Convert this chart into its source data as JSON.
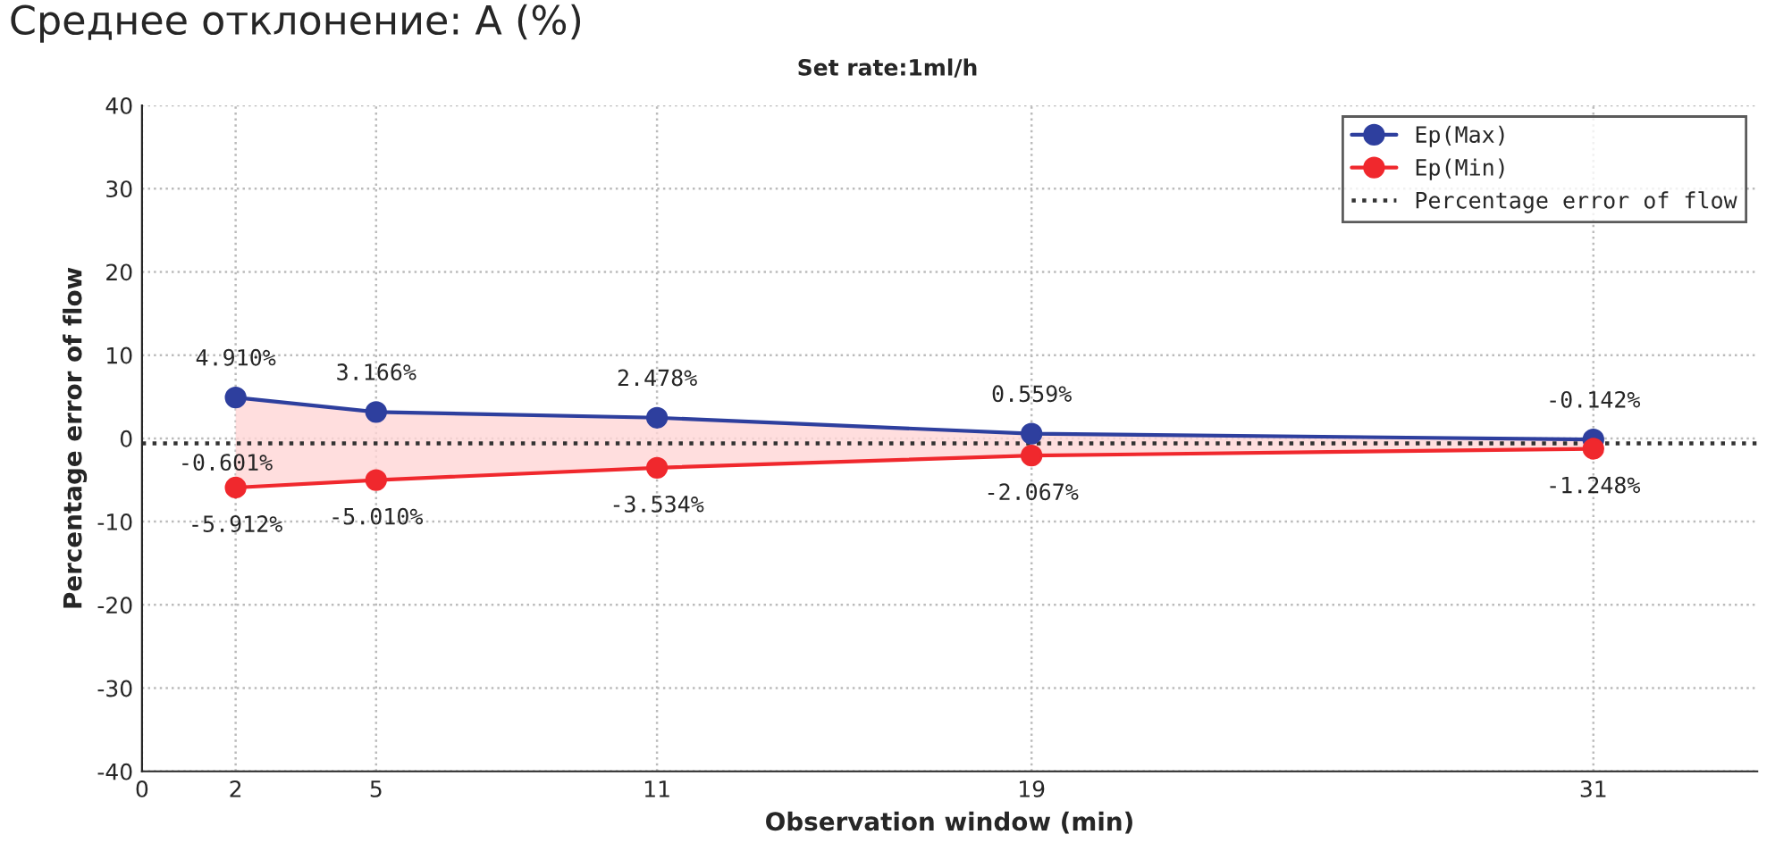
{
  "chart_data": {
    "type": "line",
    "title": "Среднее отклонение: A (%)",
    "subtitle": "Set rate:1ml/h",
    "xlabel": "Observation window (min)",
    "ylabel": "Percentage error of flow",
    "x": [
      2,
      5,
      11,
      19,
      31
    ],
    "series": [
      {
        "name": "Ep(Max)",
        "color": "#2e3f9e",
        "values": [
          4.91,
          3.166,
          2.478,
          0.559,
          -0.142
        ],
        "value_labels": [
          "4.910%",
          "3.166%",
          "2.478%",
          "0.559%",
          "-0.142%"
        ],
        "lower": [
          -5.912,
          -5.01,
          -3.534,
          -2.067,
          -1.248
        ],
        "upper": [
          4.91,
          3.166,
          2.478,
          0.559,
          -0.142
        ]
      },
      {
        "name": "Ep(Min)",
        "color": "#f0282d",
        "values": [
          -5.912,
          -5.01,
          -3.534,
          -2.067,
          -1.248
        ],
        "value_labels": [
          "-5.912%",
          "-5.010%",
          "-3.534%",
          "-2.067%",
          "-1.248%"
        ]
      }
    ],
    "ref_lines": [
      {
        "axis": "y",
        "value": -0.601,
        "label": "Percentage error of flow",
        "color": "#333333",
        "line_style": "dotted"
      }
    ],
    "annotations": [
      {
        "text": "-0.601%",
        "x": 2,
        "y": -0.601
      }
    ],
    "xlim": [
      0,
      34.5
    ],
    "xticks": [
      0,
      2,
      5,
      11,
      19,
      31
    ],
    "ylim": [
      -40,
      40
    ],
    "yticks": [
      -40,
      -30,
      -20,
      -10,
      0,
      10,
      20,
      30,
      40
    ],
    "grid": true,
    "legend": "top right",
    "marker": "circle",
    "line_style": "solid"
  }
}
